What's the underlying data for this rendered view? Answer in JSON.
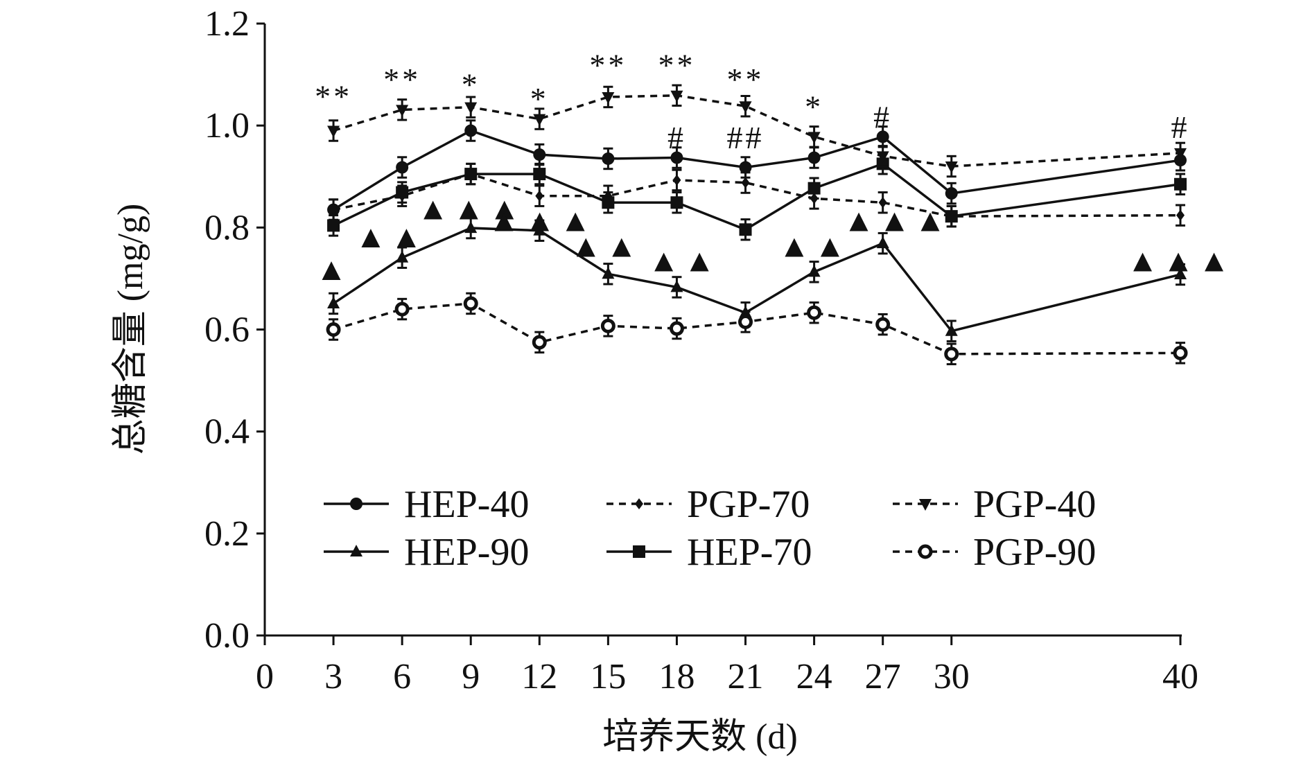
{
  "chart_data": {
    "type": "line",
    "title": "",
    "xlabel": "培养天数 (d)",
    "ylabel": "总糖含量 (mg/g)",
    "xlim": [
      0,
      40
    ],
    "ylim": [
      0,
      1.2
    ],
    "x_ticks": [
      0,
      3,
      6,
      9,
      12,
      15,
      18,
      21,
      24,
      27,
      30,
      40
    ],
    "y_ticks": [
      "0.0",
      "0.2",
      "0.4",
      "0.6",
      "0.8",
      "1.0",
      "1.2"
    ],
    "grid": false,
    "legend_position": "bottom-center",
    "x": [
      3,
      6,
      9,
      12,
      15,
      18,
      21,
      24,
      27,
      30,
      40
    ],
    "error_bar": 0.02,
    "series": [
      {
        "name": "HEP-40",
        "marker": "circle",
        "dash": false,
        "values": [
          0.835,
          0.918,
          0.99,
          0.943,
          0.935,
          0.937,
          0.918,
          0.937,
          0.978,
          0.867,
          0.932
        ]
      },
      {
        "name": "HEP-90",
        "marker": "triangle",
        "dash": false,
        "values": [
          0.651,
          0.741,
          0.799,
          0.794,
          0.709,
          0.683,
          0.633,
          0.713,
          0.769,
          0.597,
          0.708
        ]
      },
      {
        "name": "PGP-70",
        "marker": "diamond",
        "dash": true,
        "values": [
          0.835,
          0.862,
          0.905,
          0.862,
          0.862,
          0.893,
          0.888,
          0.857,
          0.849,
          0.822,
          0.824
        ]
      },
      {
        "name": "HEP-70",
        "marker": "square",
        "dash": false,
        "values": [
          0.804,
          0.869,
          0.905,
          0.905,
          0.849,
          0.849,
          0.796,
          0.877,
          0.925,
          0.822,
          0.885
        ]
      },
      {
        "name": "PGP-40",
        "marker": "triangle-down",
        "dash": true,
        "values": [
          0.99,
          1.031,
          1.036,
          1.013,
          1.056,
          1.059,
          1.038,
          0.978,
          0.94,
          0.92,
          0.946
        ]
      },
      {
        "name": "PGP-90",
        "marker": "open-circle",
        "dash": true,
        "values": [
          0.6,
          0.64,
          0.651,
          0.575,
          0.607,
          0.602,
          0.615,
          0.633,
          0.61,
          0.552,
          0.554
        ]
      }
    ],
    "annotations": [
      {
        "x": 3,
        "y": 1.061,
        "text": "**"
      },
      {
        "x": 6,
        "y": 1.094,
        "text": "**"
      },
      {
        "x": 9,
        "y": 1.084,
        "text": "*"
      },
      {
        "x": 12,
        "y": 1.056,
        "text": "*"
      },
      {
        "x": 15,
        "y": 1.122,
        "text": "**"
      },
      {
        "x": 18,
        "y": 1.122,
        "text": "**"
      },
      {
        "x": 21,
        "y": 1.094,
        "text": "**"
      },
      {
        "x": 24,
        "y": 1.04,
        "text": "*"
      },
      {
        "x": 18,
        "y": 0.98,
        "text": "#"
      },
      {
        "x": 21,
        "y": 0.98,
        "text": "##"
      },
      {
        "x": 27,
        "y": 1.02,
        "text": "#"
      },
      {
        "x": 40,
        "y": 1.0,
        "text": "#"
      },
      {
        "x": 3,
        "y": 0.716,
        "text": "▲"
      },
      {
        "x": 5.5,
        "y": 0.78,
        "text": "▲▲"
      },
      {
        "x": 9,
        "y": 0.835,
        "text": "▲▲▲"
      },
      {
        "x": 12.1,
        "y": 0.812,
        "text": "▲▲▲"
      },
      {
        "x": 14.9,
        "y": 0.762,
        "text": "▲▲"
      },
      {
        "x": 18.3,
        "y": 0.733,
        "text": "▲▲"
      },
      {
        "x": 24,
        "y": 0.762,
        "text": "▲▲"
      },
      {
        "x": 27.6,
        "y": 0.812,
        "text": "▲▲▲"
      },
      {
        "x": 40,
        "y": 0.733,
        "text": "▲▲▲"
      }
    ]
  }
}
